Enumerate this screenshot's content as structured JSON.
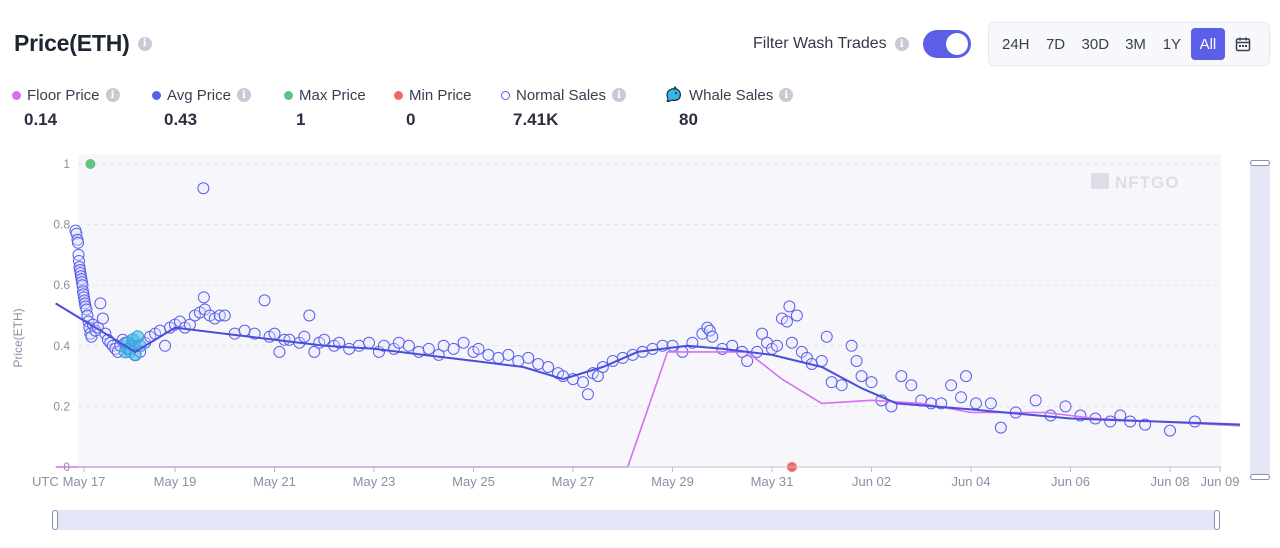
{
  "header": {
    "title": "Price(ETH)",
    "filter_label": "Filter Wash Trades",
    "filter_on": true,
    "ranges": [
      "24H",
      "7D",
      "30D",
      "3M",
      "1Y",
      "All"
    ],
    "active_range": "All"
  },
  "legend": [
    {
      "label": "Floor Price",
      "value": "0.14",
      "color": "#d76ff0",
      "marker": "dot",
      "info": true
    },
    {
      "label": "Avg Price",
      "value": "0.43",
      "color": "#5b5fe8",
      "marker": "dot",
      "info": true
    },
    {
      "label": "Max Price",
      "value": "1",
      "color": "#5fc383",
      "marker": "dot",
      "info": false
    },
    {
      "label": "Min Price",
      "value": "0",
      "color": "#f06a64",
      "marker": "dot",
      "info": false
    },
    {
      "label": "Normal Sales",
      "value": "7.41K",
      "color": "#5b5fe8",
      "marker": "ring",
      "info": true
    },
    {
      "label": "Whale Sales",
      "value": "80",
      "color": "#38b6e8",
      "marker": "whale-icon",
      "info": true
    }
  ],
  "watermark": "NFTGO",
  "chart_data": {
    "type": "scatter",
    "ylabel": "Price(ETH)",
    "xlabel": "",
    "ylim": [
      0,
      1
    ],
    "yticks": [
      0,
      0.2,
      0.4,
      0.6,
      0.8,
      1
    ],
    "xlim": [
      0,
      23.5
    ],
    "x_unit": "days since May 17",
    "xticks": [
      {
        "x": 0,
        "label": "May 17"
      },
      {
        "x": 2,
        "label": "May 19"
      },
      {
        "x": 4,
        "label": "May 21"
      },
      {
        "x": 6,
        "label": "May 23"
      },
      {
        "x": 8,
        "label": "May 25"
      },
      {
        "x": 10,
        "label": "May 27"
      },
      {
        "x": 12,
        "label": "May 29"
      },
      {
        "x": 14,
        "label": "May 31"
      },
      {
        "x": 16,
        "label": "Jun 02"
      },
      {
        "x": 18,
        "label": "Jun 04"
      },
      {
        "x": 20,
        "label": "Jun 06"
      },
      {
        "x": 22,
        "label": "Jun 08"
      },
      {
        "x": 23.5,
        "label": "Jun 09"
      }
    ],
    "x_prefix_label": "UTC",
    "grid": true,
    "avg_price": [
      [
        -0.4,
        0.54
      ],
      [
        0.5,
        0.45
      ],
      [
        1.2,
        0.38
      ],
      [
        2.0,
        0.46
      ],
      [
        3.0,
        0.44
      ],
      [
        4.0,
        0.42
      ],
      [
        5.0,
        0.4
      ],
      [
        6.0,
        0.39
      ],
      [
        7.0,
        0.37
      ],
      [
        8.0,
        0.35
      ],
      [
        9.0,
        0.33
      ],
      [
        9.8,
        0.29
      ],
      [
        10.6,
        0.33
      ],
      [
        11.3,
        0.38
      ],
      [
        12.3,
        0.4
      ],
      [
        13.0,
        0.39
      ],
      [
        14.0,
        0.37
      ],
      [
        15.0,
        0.33
      ],
      [
        15.8,
        0.26
      ],
      [
        16.5,
        0.21
      ],
      [
        18.0,
        0.19
      ],
      [
        20.0,
        0.16
      ],
      [
        23.5,
        0.14
      ]
    ],
    "floor_price": [
      [
        -0.4,
        0.0
      ],
      [
        10.5,
        0.0
      ],
      [
        11.1,
        0.0
      ],
      [
        11.9,
        0.38
      ],
      [
        13.5,
        0.38
      ],
      [
        14.2,
        0.29
      ],
      [
        15.0,
        0.21
      ],
      [
        16.0,
        0.22
      ],
      [
        17.0,
        0.21
      ],
      [
        18.0,
        0.18
      ],
      [
        19.5,
        0.18
      ],
      [
        20.5,
        0.16
      ],
      [
        23.5,
        0.135
      ]
    ],
    "max_price": [
      [
        0.3,
        1.0
      ]
    ],
    "min_price": [
      [
        14.4,
        0.0
      ]
    ],
    "normal_sales_sample": [
      [
        0.0,
        0.78
      ],
      [
        0.02,
        0.77
      ],
      [
        0.04,
        0.75
      ],
      [
        0.05,
        0.74
      ],
      [
        0.06,
        0.7
      ],
      [
        0.07,
        0.68
      ],
      [
        0.08,
        0.66
      ],
      [
        0.09,
        0.65
      ],
      [
        0.1,
        0.64
      ],
      [
        0.11,
        0.63
      ],
      [
        0.12,
        0.62
      ],
      [
        0.13,
        0.61
      ],
      [
        0.14,
        0.6
      ],
      [
        0.15,
        0.58
      ],
      [
        0.16,
        0.57
      ],
      [
        0.17,
        0.56
      ],
      [
        0.18,
        0.55
      ],
      [
        0.19,
        0.54
      ],
      [
        0.2,
        0.53
      ],
      [
        0.22,
        0.52
      ],
      [
        0.24,
        0.5
      ],
      [
        0.26,
        0.48
      ],
      [
        0.28,
        0.46
      ],
      [
        0.3,
        0.44
      ],
      [
        0.32,
        0.43
      ],
      [
        0.35,
        0.47
      ],
      [
        0.4,
        0.45
      ],
      [
        0.45,
        0.46
      ],
      [
        0.5,
        0.54
      ],
      [
        0.55,
        0.49
      ],
      [
        0.6,
        0.44
      ],
      [
        0.65,
        0.42
      ],
      [
        0.7,
        0.41
      ],
      [
        0.75,
        0.4
      ],
      [
        0.8,
        0.39
      ],
      [
        0.85,
        0.38
      ],
      [
        0.9,
        0.4
      ],
      [
        0.95,
        0.42
      ],
      [
        1.0,
        0.41
      ],
      [
        1.05,
        0.39
      ],
      [
        1.1,
        0.38
      ],
      [
        1.15,
        0.4
      ],
      [
        1.2,
        0.37
      ],
      [
        1.3,
        0.38
      ],
      [
        1.4,
        0.41
      ],
      [
        1.5,
        0.43
      ],
      [
        1.6,
        0.44
      ],
      [
        1.7,
        0.45
      ],
      [
        1.8,
        0.4
      ],
      [
        1.9,
        0.46
      ],
      [
        2.0,
        0.47
      ],
      [
        2.1,
        0.48
      ],
      [
        2.2,
        0.46
      ],
      [
        2.3,
        0.47
      ],
      [
        2.4,
        0.5
      ],
      [
        2.5,
        0.51
      ],
      [
        2.6,
        0.52
      ],
      [
        2.7,
        0.5
      ],
      [
        2.8,
        0.49
      ],
      [
        2.9,
        0.5
      ],
      [
        3.0,
        0.5
      ],
      [
        2.58,
        0.56
      ],
      [
        2.57,
        0.92
      ],
      [
        3.2,
        0.44
      ],
      [
        3.4,
        0.45
      ],
      [
        3.6,
        0.44
      ],
      [
        3.8,
        0.55
      ],
      [
        3.9,
        0.43
      ],
      [
        4.0,
        0.44
      ],
      [
        4.1,
        0.38
      ],
      [
        4.2,
        0.42
      ],
      [
        4.3,
        0.42
      ],
      [
        4.5,
        0.41
      ],
      [
        4.6,
        0.43
      ],
      [
        4.7,
        0.5
      ],
      [
        4.8,
        0.38
      ],
      [
        4.9,
        0.41
      ],
      [
        5.0,
        0.42
      ],
      [
        5.2,
        0.4
      ],
      [
        5.3,
        0.41
      ],
      [
        5.5,
        0.39
      ],
      [
        5.7,
        0.4
      ],
      [
        5.9,
        0.41
      ],
      [
        6.1,
        0.38
      ],
      [
        6.2,
        0.4
      ],
      [
        6.4,
        0.39
      ],
      [
        6.5,
        0.41
      ],
      [
        6.7,
        0.4
      ],
      [
        6.9,
        0.38
      ],
      [
        7.1,
        0.39
      ],
      [
        7.3,
        0.37
      ],
      [
        7.4,
        0.4
      ],
      [
        7.6,
        0.39
      ],
      [
        7.8,
        0.41
      ],
      [
        8.0,
        0.38
      ],
      [
        8.1,
        0.39
      ],
      [
        8.3,
        0.37
      ],
      [
        8.5,
        0.36
      ],
      [
        8.7,
        0.37
      ],
      [
        8.9,
        0.35
      ],
      [
        9.1,
        0.36
      ],
      [
        9.3,
        0.34
      ],
      [
        9.5,
        0.33
      ],
      [
        9.7,
        0.31
      ],
      [
        9.8,
        0.3
      ],
      [
        10.0,
        0.29
      ],
      [
        10.2,
        0.28
      ],
      [
        10.4,
        0.31
      ],
      [
        10.5,
        0.3
      ],
      [
        10.3,
        0.24
      ],
      [
        10.6,
        0.33
      ],
      [
        10.8,
        0.35
      ],
      [
        11.0,
        0.36
      ],
      [
        11.2,
        0.37
      ],
      [
        11.4,
        0.38
      ],
      [
        11.6,
        0.39
      ],
      [
        11.8,
        0.4
      ],
      [
        12.0,
        0.4
      ],
      [
        12.2,
        0.38
      ],
      [
        12.4,
        0.41
      ],
      [
        12.6,
        0.44
      ],
      [
        12.7,
        0.46
      ],
      [
        12.75,
        0.45
      ],
      [
        12.8,
        0.43
      ],
      [
        13.0,
        0.39
      ],
      [
        13.2,
        0.4
      ],
      [
        13.4,
        0.38
      ],
      [
        13.5,
        0.35
      ],
      [
        13.7,
        0.38
      ],
      [
        13.8,
        0.44
      ],
      [
        13.9,
        0.41
      ],
      [
        14.0,
        0.39
      ],
      [
        14.1,
        0.4
      ],
      [
        14.2,
        0.49
      ],
      [
        14.3,
        0.48
      ],
      [
        14.35,
        0.53
      ],
      [
        14.4,
        0.41
      ],
      [
        14.5,
        0.5
      ],
      [
        14.6,
        0.38
      ],
      [
        14.7,
        0.36
      ],
      [
        14.8,
        0.34
      ],
      [
        15.0,
        0.35
      ],
      [
        15.1,
        0.43
      ],
      [
        15.2,
        0.28
      ],
      [
        15.4,
        0.27
      ],
      [
        15.6,
        0.4
      ],
      [
        15.7,
        0.35
      ],
      [
        15.8,
        0.3
      ],
      [
        16.0,
        0.28
      ],
      [
        16.2,
        0.22
      ],
      [
        16.4,
        0.2
      ],
      [
        16.6,
        0.3
      ],
      [
        16.8,
        0.27
      ],
      [
        17.0,
        0.22
      ],
      [
        17.2,
        0.21
      ],
      [
        17.4,
        0.21
      ],
      [
        17.6,
        0.27
      ],
      [
        17.8,
        0.23
      ],
      [
        17.9,
        0.3
      ],
      [
        18.1,
        0.21
      ],
      [
        18.4,
        0.21
      ],
      [
        18.6,
        0.13
      ],
      [
        18.9,
        0.18
      ],
      [
        19.3,
        0.22
      ],
      [
        19.6,
        0.17
      ],
      [
        19.9,
        0.2
      ],
      [
        20.2,
        0.17
      ],
      [
        20.5,
        0.16
      ],
      [
        20.8,
        0.15
      ],
      [
        21.0,
        0.17
      ],
      [
        21.2,
        0.15
      ],
      [
        21.5,
        0.14
      ],
      [
        22.0,
        0.12
      ],
      [
        22.5,
        0.15
      ]
    ],
    "whale_sales_sample": [
      [
        1.0,
        0.38
      ],
      [
        1.05,
        0.41
      ],
      [
        1.1,
        0.39
      ],
      [
        1.15,
        0.42
      ],
      [
        1.2,
        0.37
      ],
      [
        1.25,
        0.43
      ],
      [
        1.3,
        0.4
      ]
    ],
    "legend_placement": "top"
  }
}
